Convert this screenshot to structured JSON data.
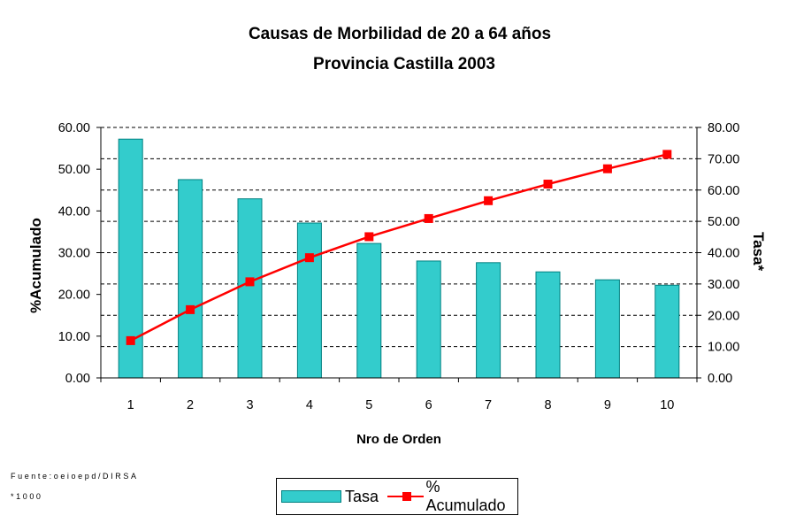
{
  "chart_data": {
    "type": "bar",
    "title": "Causas de Morbilidad de 20 a 64  años",
    "subtitle": "Provincia Castilla 2003",
    "xlabel": "Nro de Orden",
    "ylabel_left": "%Acumulado",
    "ylabel_right": "Tasa*",
    "categories": [
      "1",
      "2",
      "3",
      "4",
      "5",
      "6",
      "7",
      "8",
      "9",
      "10"
    ],
    "yticks_left": [
      "0.00",
      "10.00",
      "20.00",
      "30.00",
      "40.00",
      "50.00",
      "60.00"
    ],
    "yticks_right": [
      "0.00",
      "10.00",
      "20.00",
      "30.00",
      "40.00",
      "50.00",
      "60.00",
      "70.00",
      "80.00"
    ],
    "ylim_left": [
      0,
      60
    ],
    "ylim_right": [
      0,
      80
    ],
    "grid": "horizontal dashed",
    "legend_position": "bottom",
    "series": [
      {
        "name": "Tasa",
        "kind": "bar",
        "axis": "left",
        "color": "#33CCCC",
        "values": [
          57.2,
          47.5,
          42.9,
          37.1,
          32.2,
          28.0,
          27.6,
          25.4,
          23.5,
          22.2
        ]
      },
      {
        "name": "% Acumulado",
        "kind": "line",
        "axis": "right",
        "color": "#FF0000",
        "values": [
          11.9,
          21.8,
          30.7,
          38.4,
          45.1,
          50.9,
          56.6,
          61.9,
          66.8,
          71.4
        ]
      }
    ]
  },
  "notes": {
    "source": "Fuente:oeioepd/DIRSA",
    "footnote": "*1000"
  }
}
